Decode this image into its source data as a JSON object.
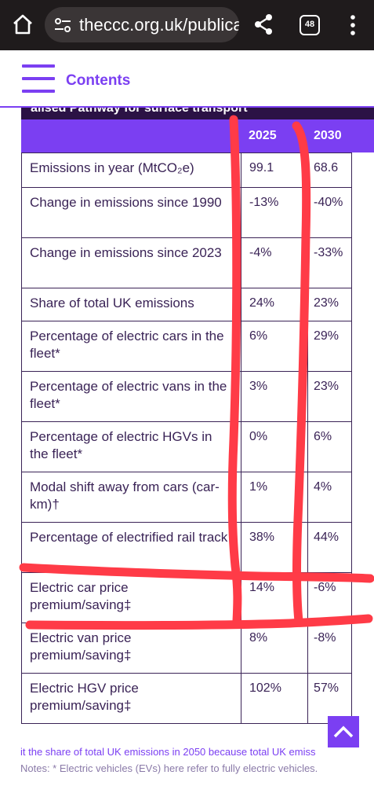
{
  "browser": {
    "url": "theccc.org.uk/publica",
    "tab_count": "48",
    "icons": [
      "home-icon",
      "site-settings-icon",
      "share-icon",
      "tab-switcher-icon",
      "kebab-menu-icon"
    ]
  },
  "header": {
    "menu_icon": "hamburger-icon",
    "contents_label": "Contents",
    "accent_color": "#7b3ff2"
  },
  "table": {
    "caption_partial": "alised Pathway for surface transport",
    "header_color": "#7b3ff2",
    "columns": [
      "2025",
      "2030"
    ],
    "rows": [
      {
        "label": "Emissions in year (MtCO₂e)",
        "v2025": "99.1",
        "v2030": "68.6"
      },
      {
        "label": "Change in emissions since 1990",
        "v2025": "-13%",
        "v2030": "-40%"
      },
      {
        "label": "Change in emissions since 2023",
        "v2025": "-4%",
        "v2030": "-33%"
      },
      {
        "label": "Share of total UK emissions",
        "v2025": "24%",
        "v2030": "23%"
      },
      {
        "label": "Percentage of electric cars in the fleet*",
        "v2025": "6%",
        "v2030": "29%"
      },
      {
        "label": "Percentage of electric vans in the fleet*",
        "v2025": "3%",
        "v2030": "23%"
      },
      {
        "label": "Percentage of electric HGVs in the fleet*",
        "v2025": "0%",
        "v2030": "6%"
      },
      {
        "label": "Modal shift away from cars (car-km)†",
        "v2025": "1%",
        "v2030": "4%"
      },
      {
        "label": "Percentage of electrified rail track",
        "v2025": "38%",
        "v2030": "44%"
      },
      {
        "label": "Electric car price premium/saving‡",
        "v2025": "14%",
        "v2030": "-6%"
      },
      {
        "label": "Electric van price premium/saving‡",
        "v2025": "8%",
        "v2030": "-8%"
      },
      {
        "label": "Electric HGV price premium/saving‡",
        "v2025": "102%",
        "v2030": "57%"
      }
    ]
  },
  "footnote": {
    "line1": "it the share of total UK emissions in 2050 because total UK emiss",
    "line2": "Notes: * Electric vehicles (EVs) here refer to fully electric vehicles."
  },
  "scroll_top_icon": "chevron-up-icon",
  "annotation_color": "#ff3b47"
}
